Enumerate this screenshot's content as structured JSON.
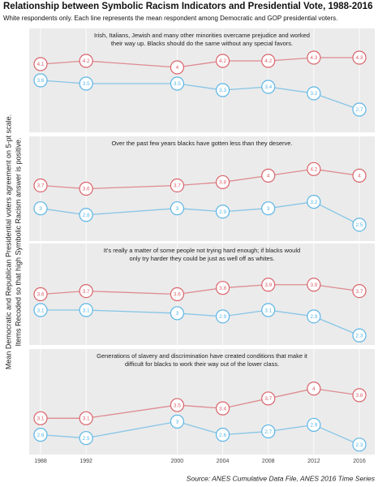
{
  "title": "Relationship between Symbolic Racism Indicators and Presidential Vote, 1988-2016",
  "subtitle": "White respondents only. Each line represents the mean respondent among Democratic and GOP presidential voters.",
  "ylabel": [
    "Mean Democratic and Republican Presidential voters agreement on 5-pt scale.",
    "Items Recoded so that high Symbolic Racism answer is positive."
  ],
  "source": "Source: ANES Cumulative Data File, ANES 2016 Time Series",
  "chart_data": [
    {
      "type": "line",
      "title": [
        "Irish, Italians, Jewish and many other minorities overcame prejudice and worked",
        "their way up.  Blacks should do the same without any special favors."
      ],
      "x": [
        1988,
        1992,
        2000,
        2004,
        2008,
        2012,
        2016
      ],
      "xlim": [
        1988,
        2016
      ],
      "ylim": [
        2,
        5.2
      ],
      "series": [
        {
          "color": "#d9636a",
          "values": [
            4.1,
            4.2,
            4,
            4.2,
            4.2,
            4.3,
            4.3
          ]
        },
        {
          "color": "#5bb5e6",
          "values": [
            3.6,
            3.5,
            3.5,
            3.3,
            3.4,
            3.2,
            2.7
          ]
        }
      ]
    },
    {
      "type": "line",
      "title": [
        "Over the past few years blacks have gotten less than they deserve."
      ],
      "x": [
        1988,
        1992,
        2000,
        2004,
        2008,
        2012,
        2016
      ],
      "xlim": [
        1988,
        2016
      ],
      "ylim": [
        2,
        5.2
      ],
      "series": [
        {
          "color": "#d9636a",
          "values": [
            3.7,
            3.6,
            3.7,
            3.8,
            4,
            4.2,
            4
          ]
        },
        {
          "color": "#5bb5e6",
          "values": [
            3,
            2.8,
            3,
            2.9,
            3,
            3.2,
            2.5
          ]
        }
      ]
    },
    {
      "type": "line",
      "title": [
        "It's really a matter of some people not trying hard enough; if blacks would",
        "only try harder they could be just as well off as whites."
      ],
      "x": [
        1988,
        1992,
        2000,
        2004,
        2008,
        2012,
        2016
      ],
      "xlim": [
        1988,
        2016
      ],
      "ylim": [
        2,
        5.2
      ],
      "series": [
        {
          "color": "#d9636a",
          "values": [
            3.6,
            3.7,
            3.6,
            3.8,
            3.9,
            3.9,
            3.7
          ]
        },
        {
          "color": "#5bb5e6",
          "values": [
            3.1,
            3.1,
            3,
            2.9,
            3.1,
            2.9,
            2.3
          ]
        }
      ]
    },
    {
      "type": "line",
      "title": [
        "Generations of slavery and discrimination have created conditions that make it",
        "difficult for blacks to work their way out of the lower class."
      ],
      "x": [
        1988,
        1992,
        2000,
        2004,
        2008,
        2012,
        2016
      ],
      "xlim": [
        1988,
        2016
      ],
      "ylim": [
        2,
        5.2
      ],
      "xticks": [
        1988,
        1992,
        2000,
        2004,
        2008,
        2012,
        2016
      ],
      "series": [
        {
          "color": "#d9636a",
          "values": [
            3.1,
            3.1,
            3.5,
            3.4,
            3.7,
            4,
            3.8
          ]
        },
        {
          "color": "#5bb5e6",
          "values": [
            2.6,
            2.5,
            3,
            2.6,
            2.7,
            2.9,
            2.3
          ]
        }
      ]
    }
  ]
}
